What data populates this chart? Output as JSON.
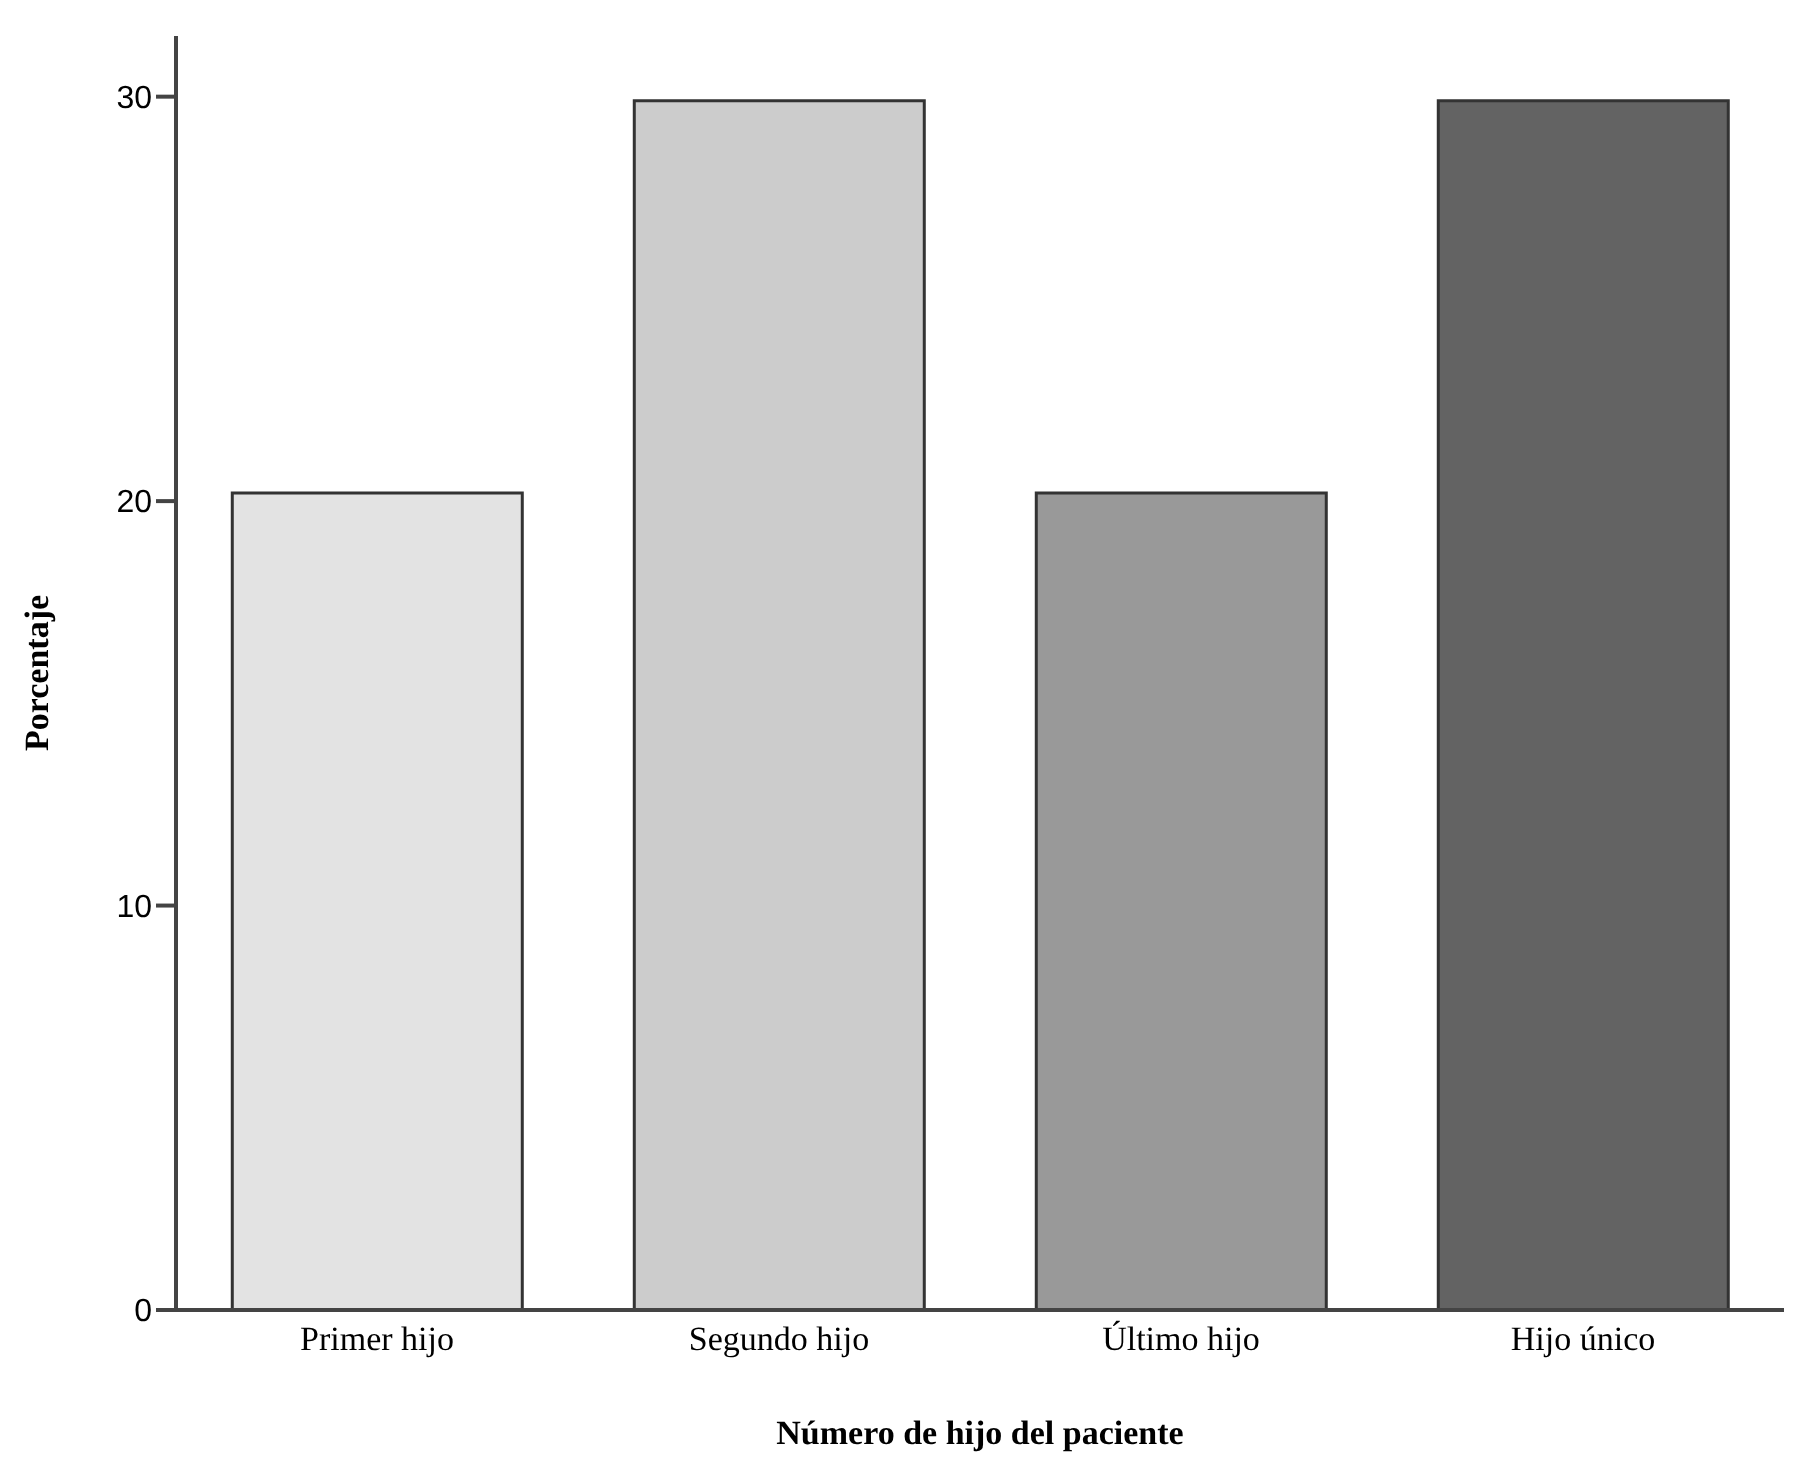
{
  "chart_data": {
    "type": "bar",
    "xlabel": "Número de hijo del paciente",
    "ylabel": "Porcentaje",
    "categories": [
      "Primer hijo",
      "Segundo hijo",
      "Último hijo",
      "Hijo único"
    ],
    "values": [
      20.2,
      29.9,
      20.2,
      29.9
    ],
    "colors": [
      "#e3e3e3",
      "#cccccc",
      "#999999",
      "#636363"
    ],
    "ylim": [
      0,
      31.5
    ],
    "yticks": [
      0,
      10,
      20,
      30
    ],
    "grid": false,
    "legend": false
  }
}
